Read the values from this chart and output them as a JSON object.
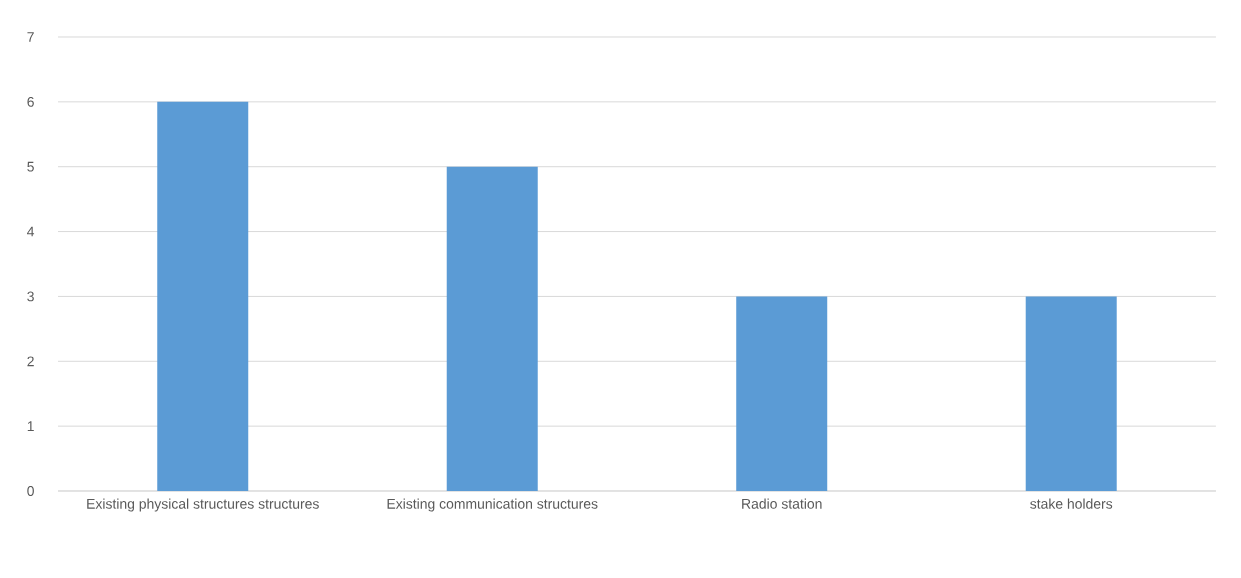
{
  "chart_data": {
    "type": "bar",
    "categories": [
      "Existing physical structures structures",
      "Existing communication structures",
      "Radio station",
      "stake holders"
    ],
    "values": [
      6,
      5,
      3,
      3
    ],
    "color": "#5b9bd5",
    "ylim": [
      0,
      7
    ],
    "yticks": [
      0,
      1,
      2,
      3,
      4,
      5,
      6,
      7
    ],
    "grid": "y"
  }
}
